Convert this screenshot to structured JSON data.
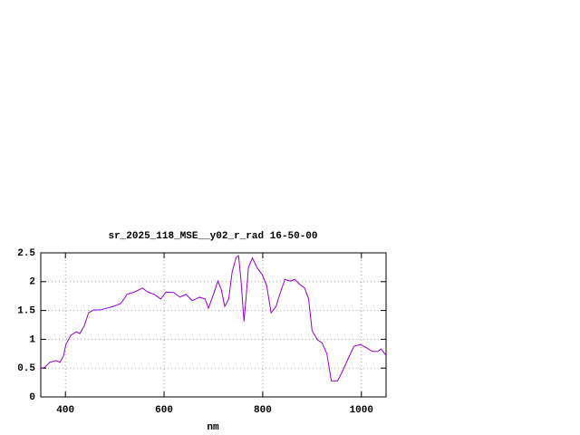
{
  "chart_data": {
    "type": "line",
    "title": "sr_2025_118_MSE__y02_r_rad 16-50-00",
    "x_label": "nm",
    "x": [
      350,
      359,
      368,
      381,
      389,
      396,
      401,
      411,
      422,
      429,
      438,
      447,
      457,
      470,
      484,
      497,
      512,
      525,
      540,
      556,
      567,
      580,
      593,
      604,
      620,
      632,
      644,
      657,
      672,
      683,
      690,
      700,
      709,
      716,
      723,
      731,
      738,
      746,
      751,
      756,
      762,
      766,
      771,
      779,
      788,
      799,
      808,
      817,
      827,
      836,
      845,
      856,
      865,
      874,
      885,
      893,
      900,
      911,
      920,
      930,
      939,
      952,
      963,
      974,
      985,
      998,
      1011,
      1022,
      1033,
      1040,
      1050
    ],
    "series": [
      {
        "color": "#9400d3",
        "values": [
          0.49,
          0.52,
          0.6,
          0.63,
          0.6,
          0.71,
          0.91,
          1.07,
          1.13,
          1.1,
          1.23,
          1.46,
          1.51,
          1.51,
          1.54,
          1.57,
          1.62,
          1.78,
          1.82,
          1.89,
          1.82,
          1.78,
          1.7,
          1.82,
          1.81,
          1.73,
          1.78,
          1.67,
          1.73,
          1.7,
          1.54,
          1.78,
          2.01,
          1.86,
          1.57,
          1.7,
          2.17,
          2.42,
          2.45,
          2.01,
          1.31,
          1.7,
          2.25,
          2.41,
          2.25,
          2.12,
          1.93,
          1.46,
          1.57,
          1.82,
          2.04,
          2.01,
          2.04,
          1.96,
          1.89,
          1.7,
          1.15,
          0.99,
          0.94,
          0.75,
          0.28,
          0.28,
          0.47,
          0.68,
          0.88,
          0.91,
          0.85,
          0.79,
          0.79,
          0.83,
          0.72
        ]
      }
    ],
    "xlim": [
      350,
      1050
    ],
    "xticks": [
      400,
      600,
      800,
      1000
    ],
    "ylim": [
      0,
      2.5
    ],
    "yticks": [
      0,
      0.5,
      1,
      1.5,
      2,
      2.5
    ],
    "grid": true
  }
}
